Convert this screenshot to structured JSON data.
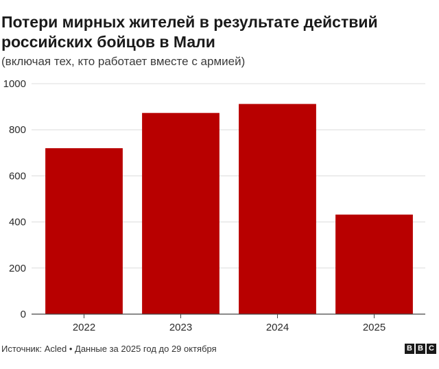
{
  "title": "Потери мирных жителей в результате действий российских бойцов в Мали",
  "subtitle": "(включая тех, кто работает вместе с армией)",
  "footer": "Источник: Acled • Данные за 2025 год до 29 октября",
  "logo": [
    "B",
    "B",
    "C"
  ],
  "chart_data": {
    "type": "bar",
    "categories": [
      "2022",
      "2023",
      "2024",
      "2025"
    ],
    "values": [
      720,
      873,
      912,
      432
    ],
    "ylim": [
      0,
      1000
    ],
    "yticks": [
      0,
      200,
      400,
      600,
      800,
      1000
    ],
    "ytick_labels": [
      "0",
      "200",
      "400",
      "600",
      "800",
      "1000"
    ],
    "grid": true,
    "bar_color": "#b80000"
  }
}
